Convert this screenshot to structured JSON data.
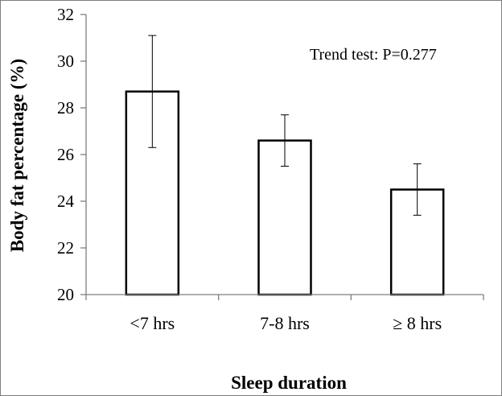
{
  "chart_data": {
    "type": "bar",
    "categories": [
      "<7 hrs",
      "7-8 hrs",
      "≥ 8 hrs"
    ],
    "values": [
      28.7,
      26.6,
      24.5
    ],
    "error_bars": [
      {
        "low": 26.3,
        "high": 31.1
      },
      {
        "low": 25.5,
        "high": 27.7
      },
      {
        "low": 23.4,
        "high": 25.6
      }
    ],
    "title": "",
    "xlabel": "Sleep duration",
    "ylabel": "Body fat percentage (%)",
    "ylim": [
      20,
      32
    ],
    "yticks": [
      20,
      22,
      24,
      26,
      28,
      30,
      32
    ],
    "grid": false,
    "annotation": "Trend test: P=0.277",
    "colors": {
      "bar_fill": "#ffffff",
      "bar_stroke": "#000000",
      "axis": "#7f7f7f",
      "error_bar": "#000000"
    }
  }
}
